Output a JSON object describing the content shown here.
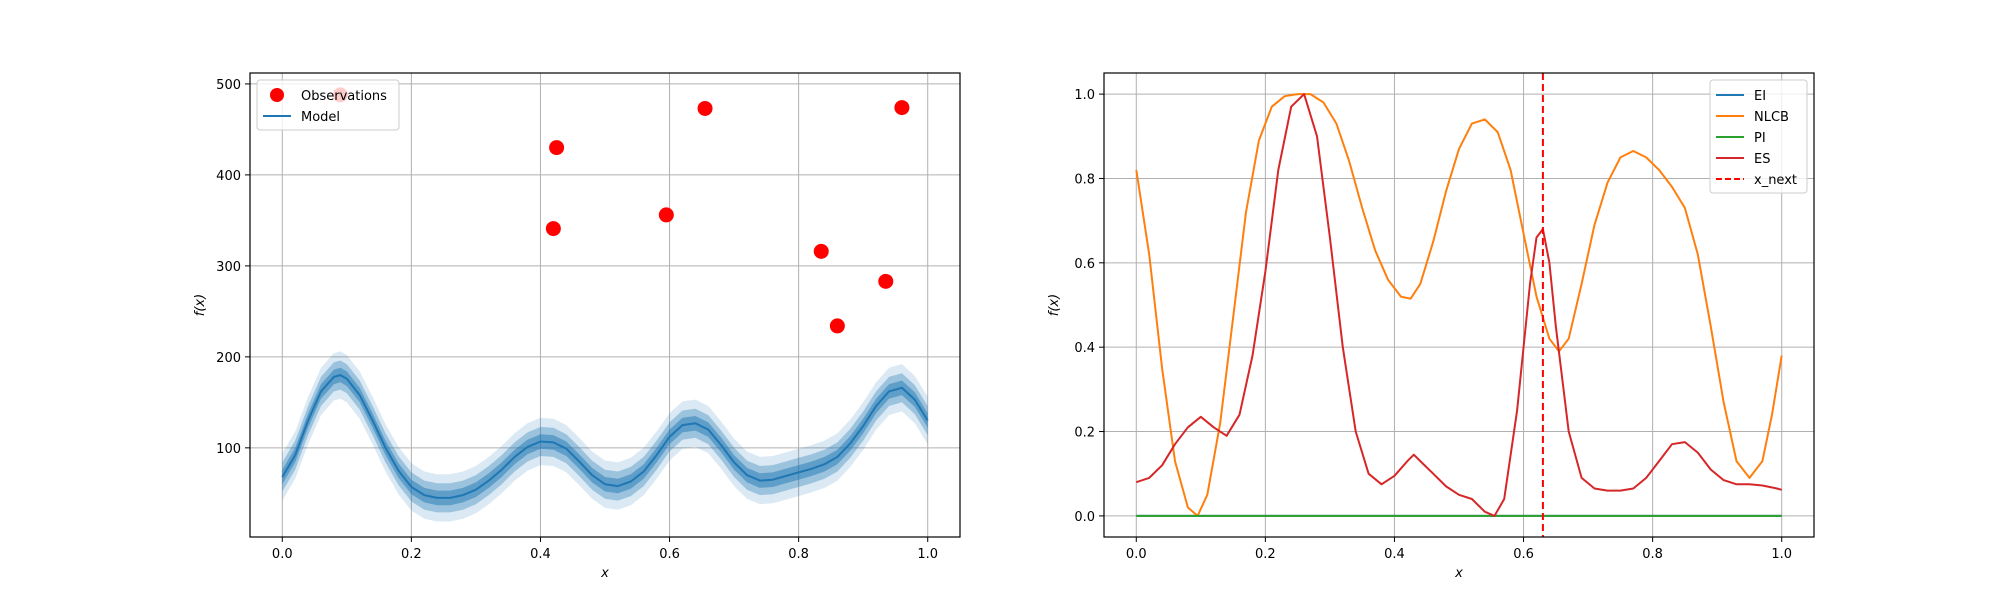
{
  "chart_data": [
    {
      "type": "line",
      "xlabel": "x",
      "ylabel": "f(x)",
      "xlim": [
        -0.05,
        1.05
      ],
      "ylim": [
        2,
        512
      ],
      "xticks": [
        0.0,
        0.2,
        0.4,
        0.6,
        0.8,
        1.0
      ],
      "xtick_labels": [
        "0.0",
        "0.2",
        "0.4",
        "0.6",
        "0.8",
        "1.0"
      ],
      "yticks": [
        100,
        200,
        300,
        400,
        500
      ],
      "ytick_labels": [
        "100",
        "200",
        "300",
        "400",
        "500"
      ],
      "grid": true,
      "legend_position": "upper-left",
      "series": [
        {
          "name": "Observations",
          "kind": "scatter",
          "color": "#ff0000",
          "x": [
            0.09,
            0.42,
            0.425,
            0.595,
            0.655,
            0.835,
            0.86,
            0.935,
            0.96
          ],
          "y": [
            488,
            341,
            430,
            356,
            473,
            316,
            234,
            283,
            474
          ]
        },
        {
          "name": "Model",
          "kind": "line",
          "color": "#1f77b4",
          "bands": [
            {
              "half_width": 8,
              "opacity": 0.9
            },
            {
              "half_width": 16,
              "opacity": 0.6
            },
            {
              "half_width": 26,
              "opacity": 0.3
            }
          ],
          "x": [
            0.0,
            0.02,
            0.04,
            0.06,
            0.08,
            0.09,
            0.1,
            0.12,
            0.14,
            0.16,
            0.18,
            0.2,
            0.22,
            0.24,
            0.26,
            0.28,
            0.3,
            0.32,
            0.34,
            0.36,
            0.38,
            0.4,
            0.42,
            0.44,
            0.46,
            0.48,
            0.5,
            0.52,
            0.54,
            0.56,
            0.58,
            0.6,
            0.62,
            0.64,
            0.66,
            0.68,
            0.7,
            0.72,
            0.74,
            0.76,
            0.78,
            0.8,
            0.82,
            0.84,
            0.86,
            0.88,
            0.9,
            0.92,
            0.94,
            0.96,
            0.98,
            1.0
          ],
          "y": [
            68,
            92,
            130,
            162,
            178,
            180,
            176,
            158,
            130,
            100,
            75,
            57,
            48,
            45,
            45,
            48,
            54,
            64,
            76,
            90,
            101,
            107,
            106,
            99,
            85,
            70,
            60,
            58,
            63,
            74,
            92,
            112,
            125,
            127,
            120,
            103,
            84,
            70,
            64,
            65,
            69,
            73,
            77,
            82,
            90,
            105,
            124,
            146,
            162,
            166,
            153,
            130
          ]
        }
      ]
    },
    {
      "type": "line",
      "xlabel": "x",
      "ylabel": "f(x)",
      "xlim": [
        -0.05,
        1.05
      ],
      "ylim": [
        -0.05,
        1.05
      ],
      "xticks": [
        0.0,
        0.2,
        0.4,
        0.6,
        0.8,
        1.0
      ],
      "xtick_labels": [
        "0.0",
        "0.2",
        "0.4",
        "0.6",
        "0.8",
        "1.0"
      ],
      "yticks": [
        0.0,
        0.2,
        0.4,
        0.6,
        0.8,
        1.0
      ],
      "ytick_labels": [
        "0.0",
        "0.2",
        "0.4",
        "0.6",
        "0.8",
        "1.0"
      ],
      "grid": true,
      "legend_position": "upper-right",
      "series": [
        {
          "name": "EI",
          "kind": "line",
          "color": "#1f77b4",
          "x": [
            0.0,
            1.0
          ],
          "y": [
            0.0,
            0.0
          ]
        },
        {
          "name": "NLCB",
          "kind": "line",
          "color": "#ff7f0e",
          "x": [
            0.0,
            0.02,
            0.04,
            0.06,
            0.08,
            0.095,
            0.11,
            0.13,
            0.15,
            0.17,
            0.19,
            0.21,
            0.23,
            0.25,
            0.27,
            0.29,
            0.31,
            0.33,
            0.35,
            0.37,
            0.39,
            0.41,
            0.425,
            0.44,
            0.46,
            0.48,
            0.5,
            0.52,
            0.54,
            0.56,
            0.58,
            0.6,
            0.62,
            0.64,
            0.655,
            0.67,
            0.69,
            0.71,
            0.73,
            0.75,
            0.77,
            0.79,
            0.81,
            0.83,
            0.85,
            0.87,
            0.89,
            0.91,
            0.93,
            0.95,
            0.97,
            0.985,
            1.0
          ],
          "y": [
            0.82,
            0.62,
            0.35,
            0.13,
            0.02,
            0.0,
            0.05,
            0.22,
            0.47,
            0.72,
            0.89,
            0.97,
            0.995,
            1.0,
            1.0,
            0.98,
            0.93,
            0.84,
            0.73,
            0.63,
            0.56,
            0.52,
            0.515,
            0.55,
            0.65,
            0.77,
            0.87,
            0.93,
            0.94,
            0.91,
            0.82,
            0.67,
            0.52,
            0.42,
            0.39,
            0.42,
            0.55,
            0.69,
            0.79,
            0.85,
            0.865,
            0.85,
            0.82,
            0.78,
            0.73,
            0.62,
            0.45,
            0.27,
            0.13,
            0.09,
            0.13,
            0.24,
            0.38
          ]
        },
        {
          "name": "PI",
          "kind": "line",
          "color": "#2ca02c",
          "x": [
            0.0,
            1.0
          ],
          "y": [
            0.0,
            0.0
          ]
        },
        {
          "name": "ES",
          "kind": "line",
          "color": "#d62728",
          "x": [
            0.0,
            0.02,
            0.04,
            0.06,
            0.08,
            0.1,
            0.12,
            0.14,
            0.16,
            0.18,
            0.2,
            0.22,
            0.24,
            0.26,
            0.28,
            0.3,
            0.32,
            0.34,
            0.36,
            0.38,
            0.4,
            0.42,
            0.43,
            0.44,
            0.46,
            0.48,
            0.5,
            0.52,
            0.54,
            0.555,
            0.57,
            0.59,
            0.61,
            0.62,
            0.63,
            0.64,
            0.65,
            0.67,
            0.69,
            0.71,
            0.73,
            0.75,
            0.77,
            0.79,
            0.81,
            0.83,
            0.85,
            0.87,
            0.89,
            0.91,
            0.93,
            0.95,
            0.97,
            0.99,
            1.0
          ],
          "y": [
            0.08,
            0.09,
            0.12,
            0.17,
            0.21,
            0.235,
            0.21,
            0.19,
            0.24,
            0.38,
            0.58,
            0.82,
            0.97,
            1.0,
            0.9,
            0.66,
            0.4,
            0.2,
            0.1,
            0.075,
            0.095,
            0.13,
            0.145,
            0.13,
            0.1,
            0.07,
            0.05,
            0.04,
            0.01,
            0.0,
            0.04,
            0.25,
            0.55,
            0.66,
            0.68,
            0.6,
            0.45,
            0.2,
            0.09,
            0.065,
            0.06,
            0.06,
            0.065,
            0.09,
            0.13,
            0.17,
            0.175,
            0.15,
            0.11,
            0.085,
            0.075,
            0.075,
            0.072,
            0.066,
            0.062
          ]
        },
        {
          "name": "x_next",
          "kind": "vline",
          "color": "#ff0000",
          "x": 0.63
        }
      ]
    }
  ]
}
